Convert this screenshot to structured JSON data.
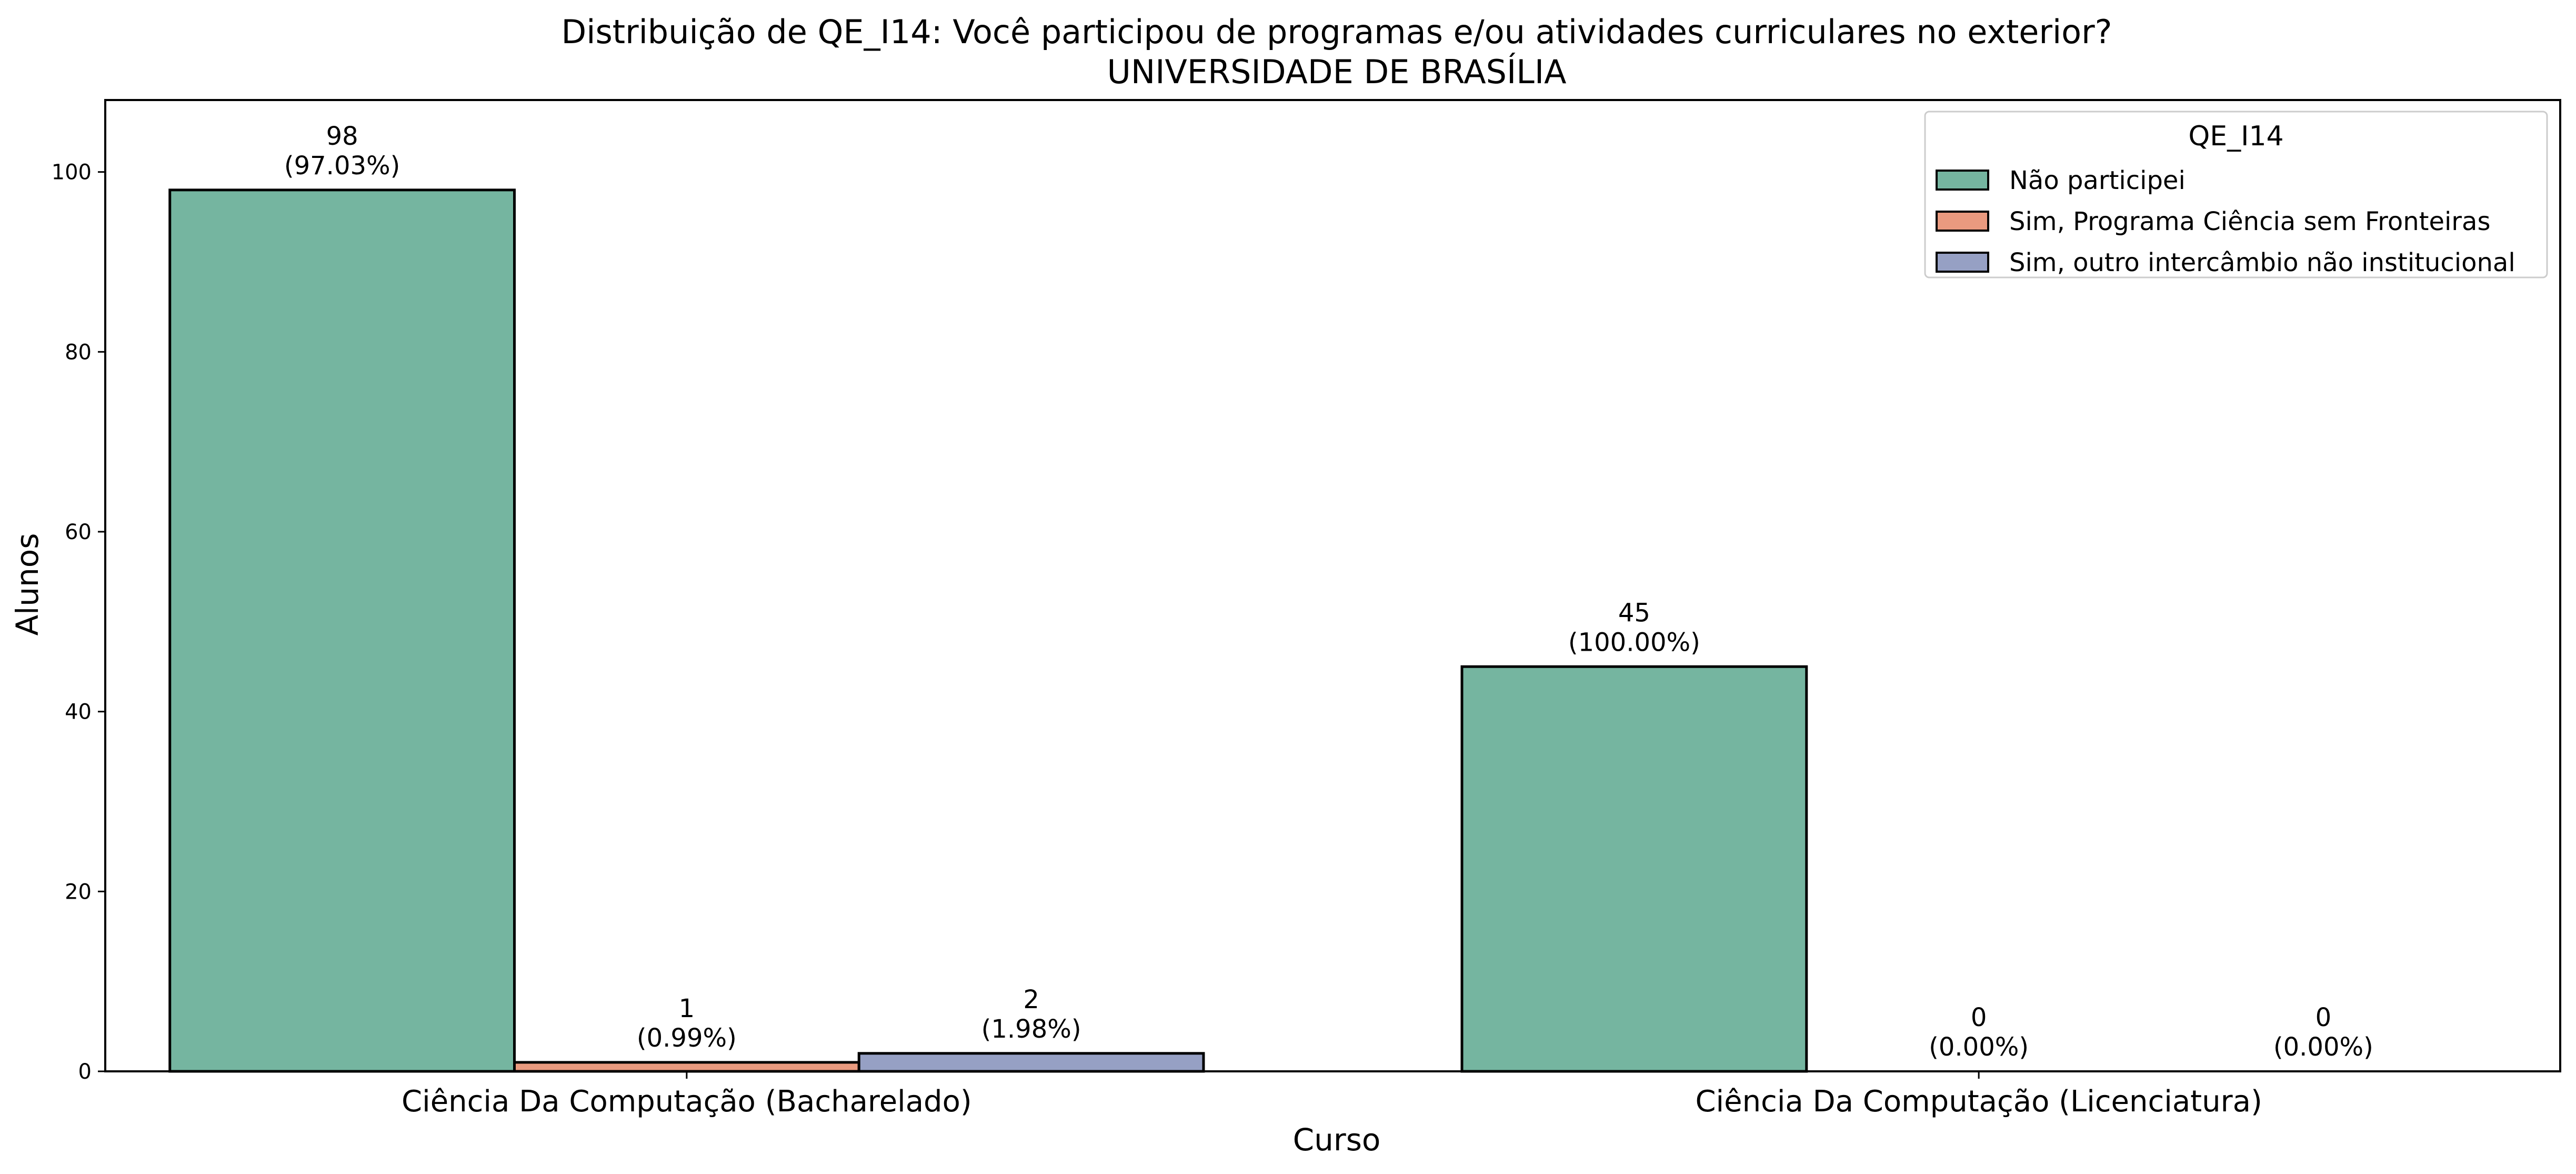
{
  "chart_data": {
    "type": "bar",
    "title": "Distribuição de QE_I14: Você participou de programas e/ou atividades curriculares no exterior?",
    "subtitle": "UNIVERSIDADE DE BRASÍLIA",
    "xlabel": "Curso",
    "ylabel": "Alunos",
    "categories": [
      "Ciência Da Computação (Bacharelado)",
      "Ciência Da Computação (Licenciatura)"
    ],
    "ylim": [
      0,
      108
    ],
    "yticks": [
      0,
      20,
      40,
      60,
      80,
      100
    ],
    "grid": false,
    "legend": {
      "title": "QE_I14",
      "placement": "top-right"
    },
    "series": [
      {
        "name": "Não participei",
        "color": "#75b5a0",
        "values": [
          98,
          45
        ],
        "labels": [
          "(97.03%)",
          "(100.00%)"
        ]
      },
      {
        "name": "Sim, Programa Ciência sem Fronteiras",
        "color": "#ea9a7f",
        "values": [
          1,
          0
        ],
        "labels": [
          "(0.99%)",
          "(0.00%)"
        ]
      },
      {
        "name": "Sim, outro intercâmbio não institucional",
        "color": "#96a0c4",
        "values": [
          2,
          0
        ],
        "labels": [
          "(1.98%)",
          "(0.00%)"
        ]
      }
    ]
  }
}
